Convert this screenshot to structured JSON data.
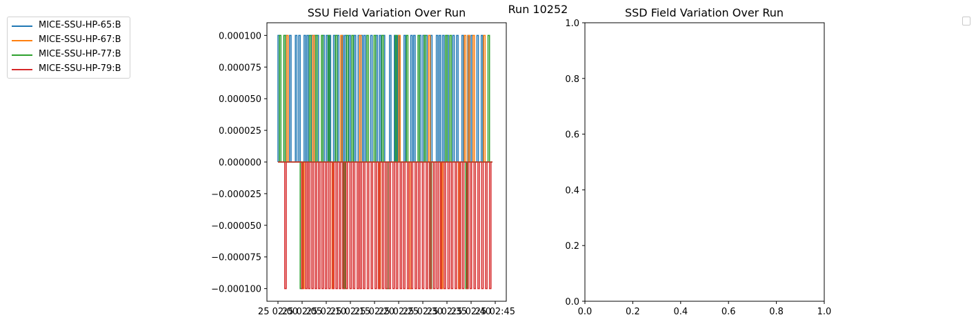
{
  "figure": {
    "suptitle": "Run 10252"
  },
  "chart_data": [
    {
      "type": "line",
      "title": "SSU Field Variation Over Run",
      "xlabel": "",
      "ylabel": "",
      "ylim": [
        -0.00011,
        0.00011
      ],
      "y_ticks": [
        "0.000100",
        "0.000075",
        "0.000050",
        "0.000025",
        "0.000000",
        "−0.000025",
        "−0.000050",
        "−0.000075",
        "−0.000100"
      ],
      "y_tick_values": [
        0.0001,
        7.5e-05,
        5e-05,
        2.5e-05,
        0,
        -2.5e-05,
        -5e-05,
        -7.5e-05,
        -0.0001
      ],
      "x_tick_labels": [
        "25 02:00",
        "25 02:05",
        "25 02:10",
        "25 02:15",
        "25 02:20",
        "25 02:25",
        "25 02:30",
        "25 02:35",
        "25 02:40",
        "25 02:45"
      ],
      "x_minutes_range": [
        0,
        45
      ],
      "legend_position": "outside-left",
      "series": [
        {
          "name": "MICE-SSU-HP-65:B",
          "color": "#1f77b4",
          "pulses_up": [
            0.0,
            1.5,
            2.4,
            3.6,
            4.3,
            5.4,
            6.0,
            6.9,
            7.5,
            8.1,
            9.3,
            10.0,
            10.6,
            11.5,
            12.3,
            13.2,
            13.8,
            14.7,
            15.8,
            16.6,
            17.2,
            17.8,
            19.2,
            20.3,
            21.0,
            21.8,
            23.1,
            24.1,
            24.8,
            26.1,
            27.5,
            28.1,
            29.3,
            30.0,
            30.6,
            31.6,
            32.8,
            33.4,
            34.1,
            35.0,
            36.2,
            37.0,
            38.1,
            39.3,
            40.0,
            41.2,
            42.1
          ]
        },
        {
          "name": "MICE-SSU-HP-67:B",
          "color": "#ff7f0e",
          "pulses_up": [
            1.8,
            7.2,
            13.0,
            16.9,
            25.0,
            31.2,
            38.6,
            39.4,
            40.4,
            42.6
          ],
          "pulses_down": [
            5.1,
            11.2,
            20.9,
            27.2,
            33.8,
            37.4
          ]
        },
        {
          "name": "MICE-SSU-HP-77:B",
          "color": "#2ca02c",
          "pulses_up": [
            0.3,
            1.2,
            6.5,
            7.8,
            9.0,
            10.4,
            11.9,
            14.2,
            15.3,
            18.4,
            19.9,
            21.5,
            24.3,
            26.6,
            29.0,
            30.3,
            34.7,
            35.6,
            43.5
          ],
          "pulses_down": [
            4.6,
            13.6,
            22.6,
            31.5,
            38.9
          ]
        },
        {
          "name": "MICE-SSU-HP-79:B",
          "color": "#d62728",
          "pulses_down": [
            1.4,
            4.9,
            5.7,
            6.3,
            7.0,
            7.7,
            8.4,
            9.1,
            9.8,
            10.5,
            11.3,
            12.0,
            12.7,
            13.4,
            14.1,
            14.9,
            15.6,
            16.4,
            17.0,
            17.7,
            18.5,
            19.3,
            20.1,
            20.8,
            21.6,
            22.3,
            23.0,
            23.8,
            24.5,
            25.3,
            26.0,
            26.8,
            27.6,
            28.4,
            29.1,
            29.9,
            30.7,
            31.4,
            32.2,
            32.9,
            33.6,
            34.4,
            35.2,
            35.9,
            36.7,
            37.5,
            38.2,
            39.1,
            39.8,
            40.6,
            41.4,
            42.2,
            43.0,
            43.8
          ]
        }
      ]
    },
    {
      "type": "line",
      "title": "SSD Field Variation Over Run",
      "xlabel": "",
      "ylabel": "",
      "xlim": [
        0,
        1
      ],
      "ylim": [
        0,
        1
      ],
      "x_ticks": [
        "0.0",
        "0.2",
        "0.4",
        "0.6",
        "0.8",
        "1.0"
      ],
      "y_ticks": [
        "0.0",
        "0.2",
        "0.4",
        "0.6",
        "0.8",
        "1.0"
      ],
      "legend_position": "top-right",
      "series": []
    }
  ]
}
